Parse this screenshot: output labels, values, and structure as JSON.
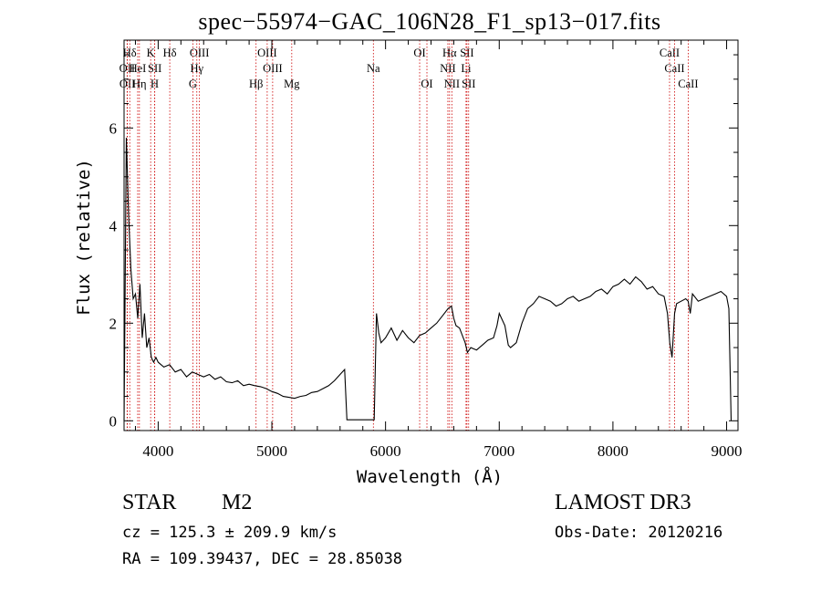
{
  "chart_data": {
    "type": "line",
    "title": "spec−55974−GAC_106N28_F1_sp13−017.fits",
    "xlabel": "Wavelength (Å)",
    "ylabel": "Flux (relative)",
    "xlim": [
      3700,
      9100
    ],
    "ylim": [
      -0.2,
      7.8
    ],
    "xticks": [
      4000,
      5000,
      6000,
      7000,
      8000,
      9000
    ],
    "yticks": [
      0,
      2,
      4,
      6
    ],
    "grid": false,
    "series": [
      {
        "x": [
          3700,
          3720,
          3740,
          3760,
          3780,
          3800,
          3820,
          3840,
          3860,
          3880,
          3900,
          3920,
          3940,
          3960,
          3980,
          4000,
          4050,
          4100,
          4150,
          4200,
          4250,
          4300,
          4350,
          4400,
          4450,
          4500,
          4550,
          4600,
          4650,
          4700,
          4750,
          4800,
          4850,
          4900,
          4950,
          5000,
          5050,
          5100,
          5150,
          5200,
          5250,
          5300,
          5350,
          5400,
          5450,
          5500,
          5550,
          5600,
          5640,
          5660,
          5700,
          5800,
          5900,
          5920,
          5940,
          5960,
          6000,
          6050,
          6100,
          6150,
          6200,
          6250,
          6300,
          6350,
          6400,
          6450,
          6500,
          6550,
          6580,
          6600,
          6620,
          6650,
          6700,
          6720,
          6750,
          6800,
          6850,
          6900,
          6950,
          6980,
          7000,
          7050,
          7080,
          7100,
          7150,
          7200,
          7250,
          7300,
          7350,
          7400,
          7450,
          7500,
          7550,
          7600,
          7650,
          7700,
          7750,
          7800,
          7850,
          7900,
          7950,
          8000,
          8050,
          8100,
          8150,
          8200,
          8250,
          8300,
          8350,
          8400,
          8450,
          8480,
          8500,
          8520,
          8542,
          8560,
          8600,
          8640,
          8662,
          8680,
          8700,
          8750,
          8800,
          8850,
          8900,
          8950,
          9000,
          9020,
          9040
        ],
        "y": [
          0.0,
          5.8,
          4.2,
          3.1,
          2.5,
          2.6,
          2.1,
          2.8,
          1.7,
          2.2,
          1.5,
          1.7,
          1.3,
          1.2,
          1.3,
          1.2,
          1.1,
          1.15,
          1.0,
          1.05,
          0.9,
          1.0,
          0.95,
          0.9,
          0.95,
          0.85,
          0.9,
          0.8,
          0.78,
          0.82,
          0.72,
          0.75,
          0.72,
          0.7,
          0.66,
          0.6,
          0.56,
          0.5,
          0.48,
          0.46,
          0.5,
          0.52,
          0.58,
          0.6,
          0.66,
          0.72,
          0.82,
          0.95,
          1.05,
          0.02,
          0.02,
          0.02,
          0.02,
          2.2,
          1.8,
          1.6,
          1.7,
          1.9,
          1.65,
          1.85,
          1.7,
          1.6,
          1.75,
          1.8,
          1.9,
          2.0,
          2.15,
          2.3,
          2.35,
          2.1,
          1.95,
          1.9,
          1.6,
          1.4,
          1.5,
          1.45,
          1.55,
          1.65,
          1.7,
          1.95,
          2.2,
          1.95,
          1.55,
          1.5,
          1.6,
          2.0,
          2.3,
          2.4,
          2.55,
          2.5,
          2.45,
          2.35,
          2.4,
          2.5,
          2.55,
          2.45,
          2.5,
          2.55,
          2.65,
          2.7,
          2.6,
          2.75,
          2.8,
          2.9,
          2.8,
          2.95,
          2.85,
          2.7,
          2.75,
          2.6,
          2.55,
          2.2,
          1.6,
          1.3,
          2.2,
          2.4,
          2.45,
          2.5,
          2.45,
          2.2,
          2.6,
          2.45,
          2.5,
          2.55,
          2.6,
          2.65,
          2.55,
          2.3,
          0.0
        ]
      }
    ],
    "lines": [
      {
        "name": "OII",
        "x": 3727,
        "row": 1
      },
      {
        "name": "OII",
        "x": 3729,
        "row": 2
      },
      {
        "name": "Hδ",
        "x": 3750,
        "row": 0
      },
      {
        "name": "HeI",
        "x": 3820,
        "row": 1
      },
      {
        "name": "Hη",
        "x": 3835,
        "row": 2
      },
      {
        "name": "K",
        "x": 3934,
        "row": 0
      },
      {
        "name": "SII",
        "x": 3970,
        "row": 1
      },
      {
        "name": "H",
        "x": 3969,
        "row": 2
      },
      {
        "name": "Hδ",
        "x": 4102,
        "row": 0
      },
      {
        "name": "OIII",
        "x": 4363,
        "row": 0
      },
      {
        "name": "Hγ",
        "x": 4340,
        "row": 1
      },
      {
        "name": "G",
        "x": 4305,
        "row": 2
      },
      {
        "name": "Hβ",
        "x": 4861,
        "row": 2
      },
      {
        "name": "OIII",
        "x": 4959,
        "row": 0
      },
      {
        "name": "OIII",
        "x": 5007,
        "row": 1
      },
      {
        "name": "Mg",
        "x": 5175,
        "row": 2
      },
      {
        "name": "Na",
        "x": 5893,
        "row": 1
      },
      {
        "name": "OI",
        "x": 6300,
        "row": 0
      },
      {
        "name": "OI",
        "x": 6364,
        "row": 2
      },
      {
        "name": "Hα",
        "x": 6563,
        "row": 0
      },
      {
        "name": "NII",
        "x": 6548,
        "row": 1
      },
      {
        "name": "NII",
        "x": 6583,
        "row": 2
      },
      {
        "name": "SII",
        "x": 6716,
        "row": 0
      },
      {
        "name": "Li",
        "x": 6708,
        "row": 1
      },
      {
        "name": "SII",
        "x": 6731,
        "row": 2
      },
      {
        "name": "CaII",
        "x": 8498,
        "row": 0
      },
      {
        "name": "CaII",
        "x": 8542,
        "row": 1
      },
      {
        "name": "CaII",
        "x": 8662,
        "row": 2
      }
    ],
    "line_color": "#cc0000"
  },
  "info": {
    "object_class": "STAR",
    "subclass": "M2",
    "survey": "LAMOST DR3",
    "cz": "cz = 125.3 ± 209.9 km/s",
    "obs_date": "Obs-Date: 20120216",
    "coords": "RA = 109.39437, DEC =  28.85038"
  }
}
